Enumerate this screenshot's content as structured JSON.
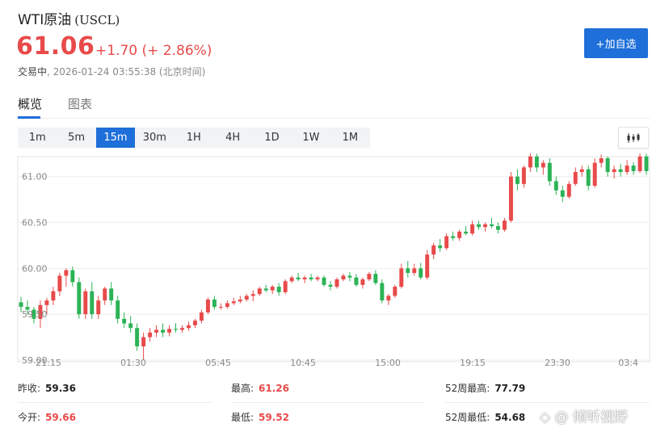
{
  "header": {
    "name": "WTI原油",
    "code": "(USCL)",
    "price": "61.06",
    "change": "+1.70 (+ 2.86%)",
    "status": "交易中",
    "timestamp": ", 2026-01-24 03:55:38 (北京时间)",
    "add_label": "+加自选"
  },
  "tabs": [
    {
      "label": "概览"
    },
    {
      "label": "图表"
    }
  ],
  "periods": [
    "1m",
    "5m",
    "15m",
    "30m",
    "1H",
    "4H",
    "1D",
    "1W",
    "1M"
  ],
  "active_period": "15m",
  "colors": {
    "up": "#e84a4a",
    "down": "#2bb356",
    "accent": "#1e6fd9"
  },
  "chart_data": {
    "type": "candlestick",
    "ylim": [
      59.0,
      61.2
    ],
    "y_ticks": [
      "61.00",
      "60.50",
      "60.00",
      "59.50",
      "59.00"
    ],
    "y_tick_values": [
      61.0,
      60.5,
      60.0,
      59.5,
      59.0
    ],
    "x_tick_labels": [
      "21:15",
      "01:30",
      "05:45",
      "10:45",
      "15:00",
      "19:15",
      "23:30",
      "03:4"
    ],
    "candles": [
      [
        59.63,
        59.69,
        59.52,
        59.58
      ],
      [
        59.58,
        59.65,
        59.5,
        59.55
      ],
      [
        59.55,
        59.58,
        59.4,
        59.45
      ],
      [
        59.45,
        59.65,
        59.35,
        59.6
      ],
      [
        59.6,
        59.68,
        59.5,
        59.65
      ],
      [
        59.65,
        59.8,
        59.6,
        59.75
      ],
      [
        59.75,
        59.95,
        59.7,
        59.92
      ],
      [
        59.92,
        60.0,
        59.8,
        59.98
      ],
      [
        59.98,
        60.02,
        59.8,
        59.85
      ],
      [
        59.85,
        59.9,
        59.45,
        59.5
      ],
      [
        59.5,
        59.78,
        59.45,
        59.75
      ],
      [
        59.75,
        59.85,
        59.45,
        59.5
      ],
      [
        59.5,
        59.7,
        59.45,
        59.65
      ],
      [
        59.65,
        59.8,
        59.6,
        59.78
      ],
      [
        59.78,
        59.85,
        59.6,
        59.65
      ],
      [
        59.65,
        59.7,
        59.4,
        59.45
      ],
      [
        59.45,
        59.52,
        59.35,
        59.4
      ],
      [
        59.4,
        59.48,
        59.3,
        59.35
      ],
      [
        59.35,
        59.4,
        59.1,
        59.15
      ],
      [
        59.15,
        59.3,
        59.0,
        59.25
      ],
      [
        59.25,
        59.35,
        59.2,
        59.3
      ],
      [
        59.3,
        59.38,
        59.25,
        59.33
      ],
      [
        59.33,
        59.4,
        59.25,
        59.3
      ],
      [
        59.3,
        59.38,
        59.26,
        59.34
      ],
      [
        59.34,
        59.4,
        59.3,
        59.33
      ],
      [
        59.33,
        59.38,
        59.3,
        59.35
      ],
      [
        59.35,
        59.42,
        59.32,
        59.38
      ],
      [
        59.38,
        59.45,
        59.35,
        59.43
      ],
      [
        59.43,
        59.55,
        59.4,
        59.52
      ],
      [
        59.52,
        59.68,
        59.5,
        59.66
      ],
      [
        59.66,
        59.7,
        59.55,
        59.58
      ],
      [
        59.58,
        59.62,
        59.55,
        59.58
      ],
      [
        59.58,
        59.65,
        59.56,
        59.62
      ],
      [
        59.62,
        59.68,
        59.6,
        59.64
      ],
      [
        59.64,
        59.7,
        59.62,
        59.66
      ],
      [
        59.66,
        59.72,
        59.64,
        59.7
      ],
      [
        59.7,
        59.76,
        59.64,
        59.72
      ],
      [
        59.72,
        59.8,
        59.7,
        59.78
      ],
      [
        59.78,
        59.82,
        59.74,
        59.76
      ],
      [
        59.76,
        59.82,
        59.72,
        59.8
      ],
      [
        59.8,
        59.84,
        59.7,
        59.74
      ],
      [
        59.74,
        59.88,
        59.72,
        59.86
      ],
      [
        59.86,
        59.92,
        59.84,
        59.9
      ],
      [
        59.9,
        59.95,
        59.86,
        59.88
      ],
      [
        59.88,
        59.92,
        59.84,
        59.9
      ],
      [
        59.9,
        59.94,
        59.86,
        59.88
      ],
      [
        59.88,
        59.92,
        59.86,
        59.9
      ],
      [
        59.9,
        59.92,
        59.8,
        59.82
      ],
      [
        59.82,
        59.86,
        59.76,
        59.8
      ],
      [
        59.8,
        59.9,
        59.78,
        59.88
      ],
      [
        59.88,
        59.94,
        59.86,
        59.92
      ],
      [
        59.92,
        59.96,
        59.86,
        59.9
      ],
      [
        59.9,
        59.94,
        59.8,
        59.82
      ],
      [
        59.82,
        59.9,
        59.78,
        59.88
      ],
      [
        59.88,
        59.96,
        59.86,
        59.94
      ],
      [
        59.94,
        59.98,
        59.82,
        59.84
      ],
      [
        59.84,
        59.88,
        59.62,
        59.65
      ],
      [
        59.65,
        59.72,
        59.6,
        59.7
      ],
      [
        59.7,
        59.82,
        59.68,
        59.8
      ],
      [
        59.8,
        60.05,
        59.78,
        60.0
      ],
      [
        60.0,
        60.08,
        59.9,
        59.95
      ],
      [
        59.95,
        60.05,
        59.92,
        60.0
      ],
      [
        60.0,
        60.06,
        59.88,
        59.9
      ],
      [
        59.9,
        60.2,
        59.88,
        60.15
      ],
      [
        60.15,
        60.28,
        60.1,
        60.25
      ],
      [
        60.25,
        60.32,
        60.18,
        60.22
      ],
      [
        60.22,
        60.38,
        60.2,
        60.35
      ],
      [
        60.35,
        60.4,
        60.3,
        60.33
      ],
      [
        60.33,
        60.42,
        60.3,
        60.4
      ],
      [
        60.4,
        60.46,
        60.36,
        60.38
      ],
      [
        60.38,
        60.52,
        60.36,
        60.48
      ],
      [
        60.48,
        60.52,
        60.42,
        60.45
      ],
      [
        60.45,
        60.5,
        60.4,
        60.48
      ],
      [
        60.48,
        60.55,
        60.44,
        60.46
      ],
      [
        60.46,
        60.5,
        60.38,
        60.42
      ],
      [
        60.42,
        60.55,
        60.4,
        60.52
      ],
      [
        60.52,
        61.05,
        60.5,
        61.0
      ],
      [
        61.0,
        61.08,
        60.85,
        60.92
      ],
      [
        60.92,
        61.12,
        60.88,
        61.1
      ],
      [
        61.1,
        61.26,
        61.05,
        61.22
      ],
      [
        61.22,
        61.25,
        61.05,
        61.1
      ],
      [
        61.1,
        61.18,
        61.02,
        61.15
      ],
      [
        61.15,
        61.2,
        60.9,
        60.95
      ],
      [
        60.95,
        61.0,
        60.8,
        60.85
      ],
      [
        60.85,
        60.9,
        60.72,
        60.78
      ],
      [
        60.78,
        60.95,
        60.76,
        60.92
      ],
      [
        60.92,
        61.1,
        60.9,
        61.05
      ],
      [
        61.05,
        61.12,
        61.0,
        61.08
      ],
      [
        61.08,
        61.12,
        60.85,
        60.9
      ],
      [
        60.9,
        61.2,
        60.88,
        61.15
      ],
      [
        61.15,
        61.24,
        61.1,
        61.2
      ],
      [
        61.2,
        61.22,
        61.0,
        61.05
      ],
      [
        61.05,
        61.12,
        60.98,
        61.08
      ],
      [
        61.08,
        61.14,
        61.0,
        61.05
      ],
      [
        61.05,
        61.18,
        61.02,
        61.12
      ],
      [
        61.12,
        61.16,
        61.02,
        61.06
      ],
      [
        61.06,
        61.26,
        61.04,
        61.22
      ],
      [
        61.22,
        61.25,
        61.02,
        61.06
      ]
    ]
  },
  "stats": [
    {
      "label": "昨收:",
      "value": "59.36",
      "color": "dark"
    },
    {
      "label": "最高:",
      "value": "61.26",
      "color": "red"
    },
    {
      "label": "52周最高:",
      "value": "77.79",
      "color": "dark"
    },
    {
      "label": "今开:",
      "value": "59.66",
      "color": "red"
    },
    {
      "label": "最低:",
      "value": "59.52",
      "color": "red"
    },
    {
      "label": "52周最低:",
      "value": "54.68",
      "color": "dark"
    }
  ],
  "watermark": "◇ @ 倾听视野"
}
